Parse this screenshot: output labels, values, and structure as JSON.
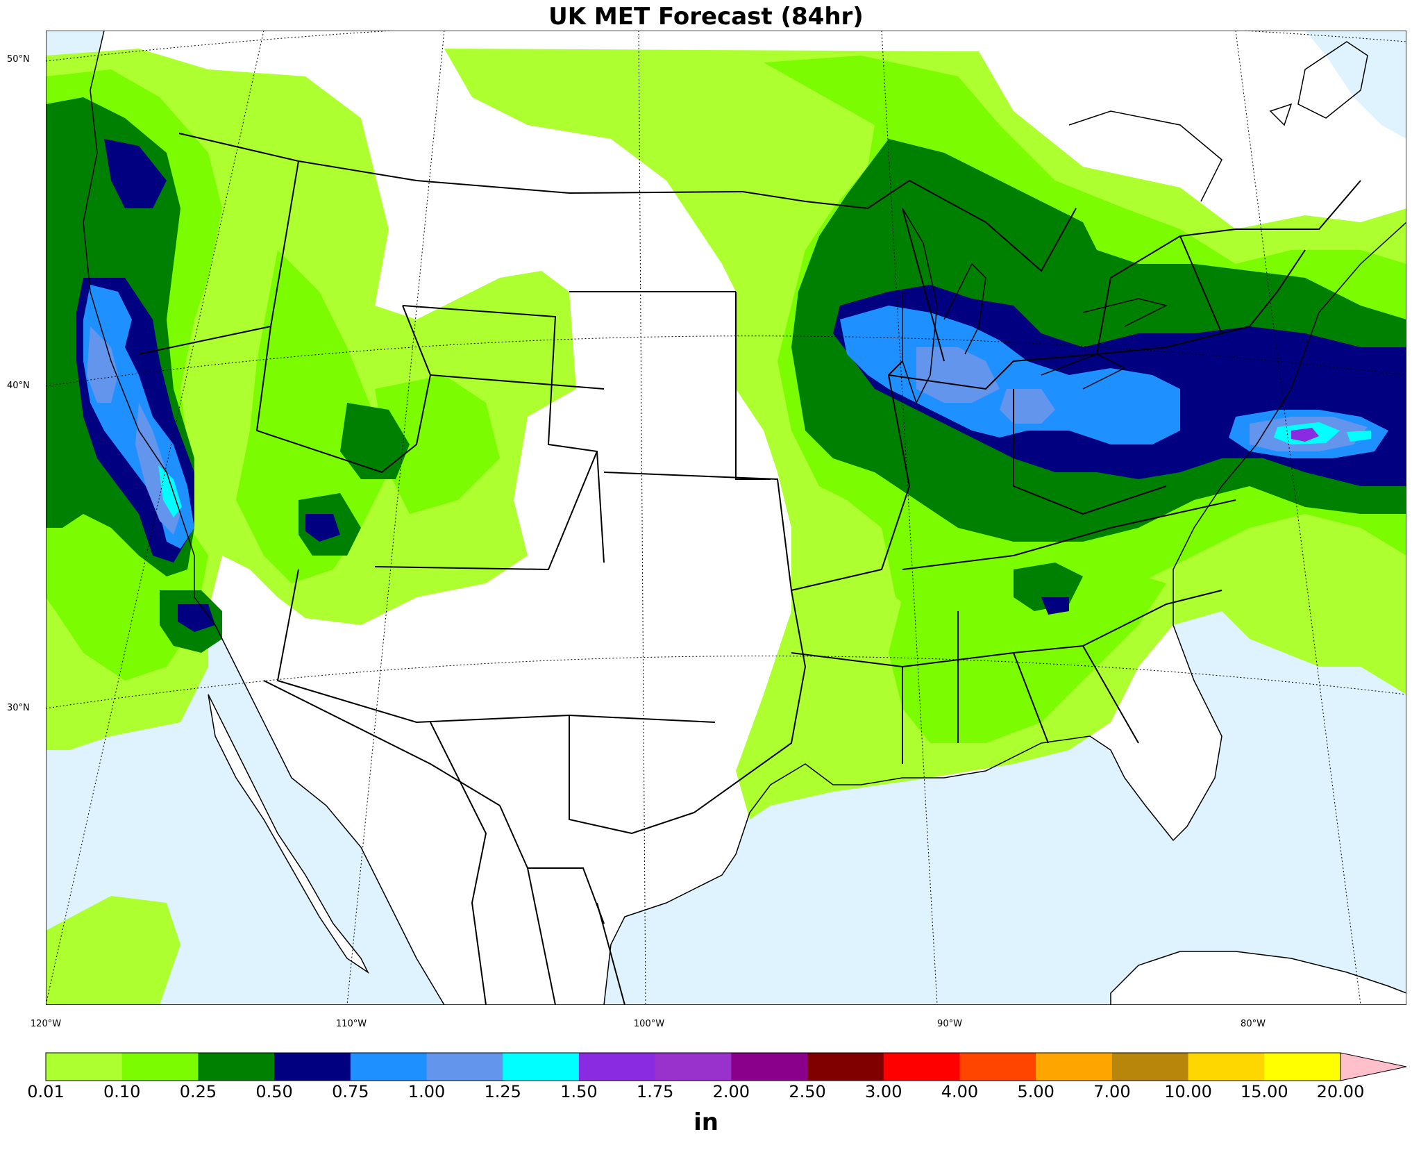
{
  "title": "UK MET Forecast (84hr)",
  "map": {
    "projection": "lambert-conformal",
    "lat_labels": [
      "50°N",
      "40°N",
      "30°N"
    ],
    "lon_labels": [
      "120°W",
      "110°W",
      "100°W",
      "90°W",
      "80°W"
    ],
    "ocean_color": "#def3fd",
    "land_color": "#ffffff"
  },
  "colorbar": {
    "units": "in",
    "bounds": [
      "0.01",
      "0.10",
      "0.25",
      "0.50",
      "0.75",
      "1.00",
      "1.25",
      "1.50",
      "1.75",
      "2.00",
      "2.50",
      "3.00",
      "4.00",
      "5.00",
      "7.00",
      "10.00",
      "15.00",
      "20.00"
    ],
    "colors": [
      "#adff2f",
      "#7cfc00",
      "#008000",
      "#000080",
      "#1e90ff",
      "#6495ed",
      "#00ffff",
      "#8a2be2",
      "#9932cc",
      "#8b008b",
      "#800000",
      "#ff0000",
      "#ff4500",
      "#ffa500",
      "#b8860b",
      "#ffd700",
      "#ffff00"
    ],
    "extend_color": "#ffc0cb"
  }
}
